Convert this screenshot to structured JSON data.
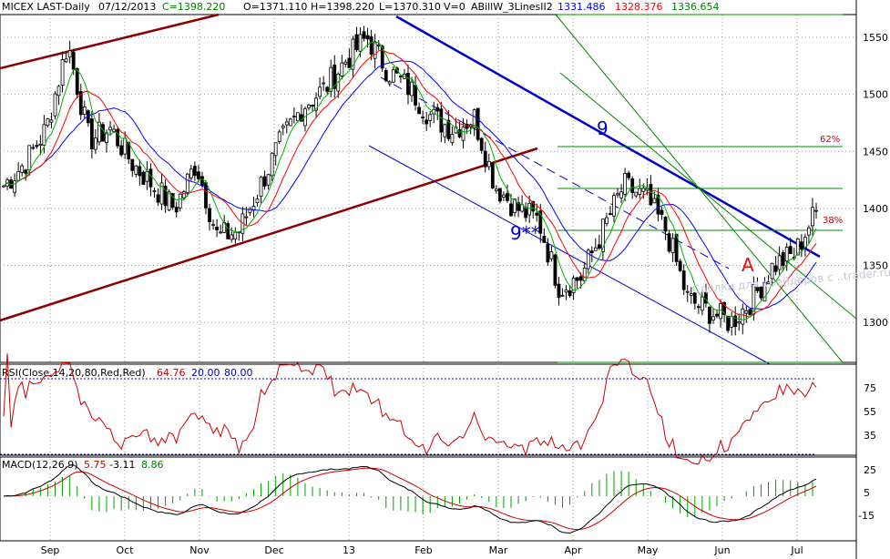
{
  "header": {
    "symbol": "MICEX LAST-Daily",
    "date": "07/12/2013",
    "close": "C=1398.220",
    "open": "O=1371.110",
    "high": "H=1398.220",
    "low": "L=1370.310",
    "volume": "V=0",
    "indicator": "ABillW_3LinesII2",
    "ind_values": [
      "1331.486",
      "1328.376",
      "1336.654"
    ]
  },
  "annotations": {
    "wave9": "9",
    "wave9ss": "9**",
    "waveA": "A",
    "fib62": "62%",
    "fib38": "38%",
    "watermark": "Сделки для трейдеров с ..trader.ru"
  },
  "rsi": {
    "label": "RSI(Close,14,20,80,Red,Red)",
    "value": "64.76",
    "lower": "20.00",
    "upper": "80.00",
    "ticks": [
      "75",
      "55",
      "35"
    ]
  },
  "macd": {
    "label": "MACD(12,26,9)",
    "v1": "5.75",
    "v2": "-3.11",
    "v3": "8.86",
    "ticks": [
      "25",
      "5",
      "-15"
    ]
  },
  "colors": {
    "blue_ma": "#0000ff",
    "red_ma": "#ff0000",
    "green_ma": "#00b000",
    "trend_brown": "#8b0000",
    "trend_blue": "#0000cc",
    "green_lines": "#008800"
  },
  "chart_data": {
    "type": "candlestick",
    "title": "MICEX LAST-Daily",
    "x_labels": [
      "Sep",
      "Oct",
      "Nov",
      "Dec",
      "13",
      "Feb",
      "Mar",
      "Apr",
      "May",
      "Jun",
      "Jul"
    ],
    "y_ticks": [
      1550,
      1500,
      1450,
      1400,
      1350,
      1300
    ],
    "ylim": [
      1265,
      1570
    ],
    "last_close": 1398.22,
    "approx_closes": [
      1420,
      1440,
      1470,
      1545,
      1460,
      1470,
      1440,
      1420,
      1400,
      1440,
      1375,
      1380,
      1420,
      1460,
      1490,
      1505,
      1530,
      1550,
      1520,
      1505,
      1480,
      1470,
      1480,
      1420,
      1400,
      1390,
      1330,
      1340,
      1380,
      1420,
      1410,
      1380,
      1320,
      1310,
      1300,
      1320,
      1350,
      1360,
      1398
    ],
    "fib_levels": [
      {
        "label": "62%",
        "price": 1456
      },
      {
        "label": "38%",
        "price": 1385
      }
    ]
  }
}
